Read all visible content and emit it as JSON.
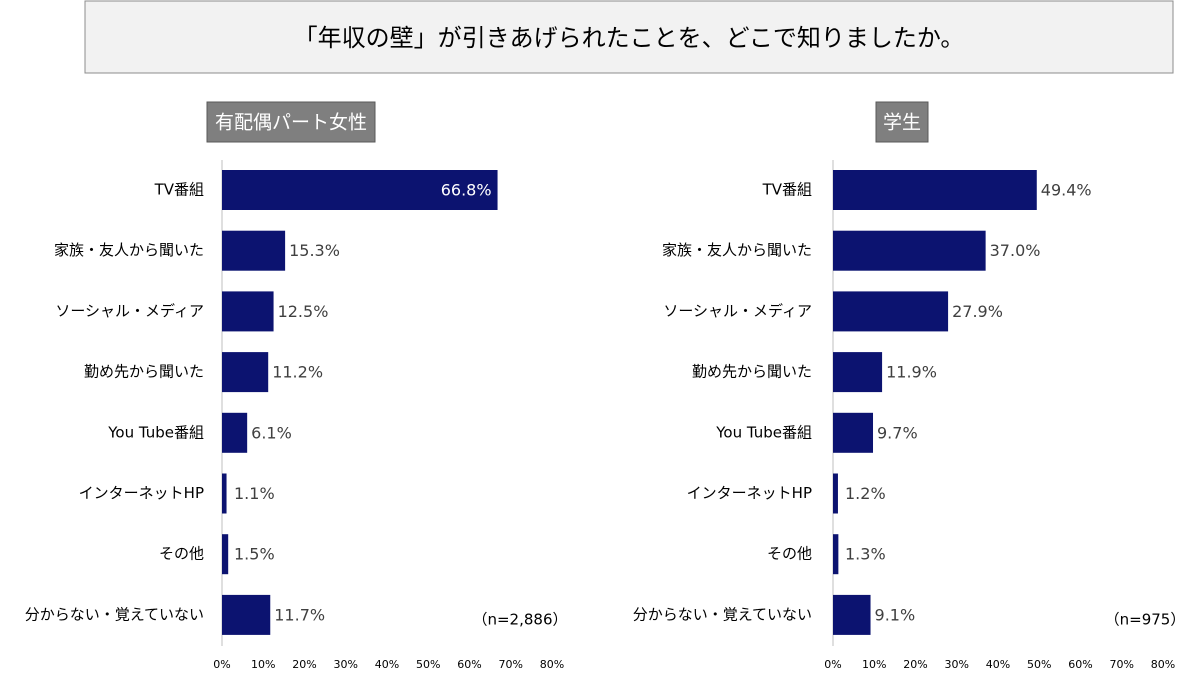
{
  "title": "「年収の壁」が引きあげられたことを、どこで知りましたか。",
  "chart_data": [
    {
      "type": "bar",
      "orientation": "horizontal",
      "subtitle": "有配偶パート女性",
      "note": "（n=2,886）",
      "color": "#0c1370",
      "categories": [
        "TV番組",
        "家族・友人から聞いた",
        "ソーシャル・メディア",
        "勤め先から聞いた",
        "You Tube番組",
        "インターネットHP",
        "その他",
        "分からない・覚えていない"
      ],
      "values": [
        66.8,
        15.3,
        12.5,
        11.2,
        6.1,
        1.1,
        1.5,
        11.7
      ],
      "value_labels": [
        "66.8%",
        "15.3%",
        "12.5%",
        "11.2%",
        "6.1%",
        "1.1%",
        "1.5%",
        "11.7%"
      ],
      "xlim": [
        0,
        80
      ],
      "xticks": [
        {
          "value": 0,
          "label": "0%"
        },
        {
          "value": 10,
          "label": "10%"
        },
        {
          "value": 20,
          "label": "20%"
        },
        {
          "value": 30,
          "label": "30%"
        },
        {
          "value": 40,
          "label": "40%"
        },
        {
          "value": 50,
          "label": "50%"
        },
        {
          "value": 60,
          "label": "60%"
        },
        {
          "value": 70,
          "label": "70%"
        },
        {
          "value": 80,
          "label": "80%"
        }
      ]
    },
    {
      "type": "bar",
      "orientation": "horizontal",
      "subtitle": "学生",
      "note": "（n=975）",
      "color": "#0c1370",
      "categories": [
        "TV番組",
        "家族・友人から聞いた",
        "ソーシャル・メディア",
        "勤め先から聞いた",
        "You Tube番組",
        "インターネットHP",
        "その他",
        "分からない・覚えていない"
      ],
      "values": [
        49.4,
        37.0,
        27.9,
        11.9,
        9.7,
        1.2,
        1.3,
        9.1
      ],
      "value_labels": [
        "49.4%",
        "37.0%",
        "27.9%",
        "11.9%",
        "9.7%",
        "1.2%",
        "1.3%",
        "9.1%"
      ],
      "xlim": [
        0,
        80
      ],
      "xticks": [
        {
          "value": 0,
          "label": "0%"
        },
        {
          "value": 10,
          "label": "10%"
        },
        {
          "value": 20,
          "label": "20%"
        },
        {
          "value": 30,
          "label": "30%"
        },
        {
          "value": 40,
          "label": "40%"
        },
        {
          "value": 50,
          "label": "50%"
        },
        {
          "value": 60,
          "label": "60%"
        },
        {
          "value": 70,
          "label": "70%"
        },
        {
          "value": 80,
          "label": "80%"
        }
      ]
    }
  ]
}
